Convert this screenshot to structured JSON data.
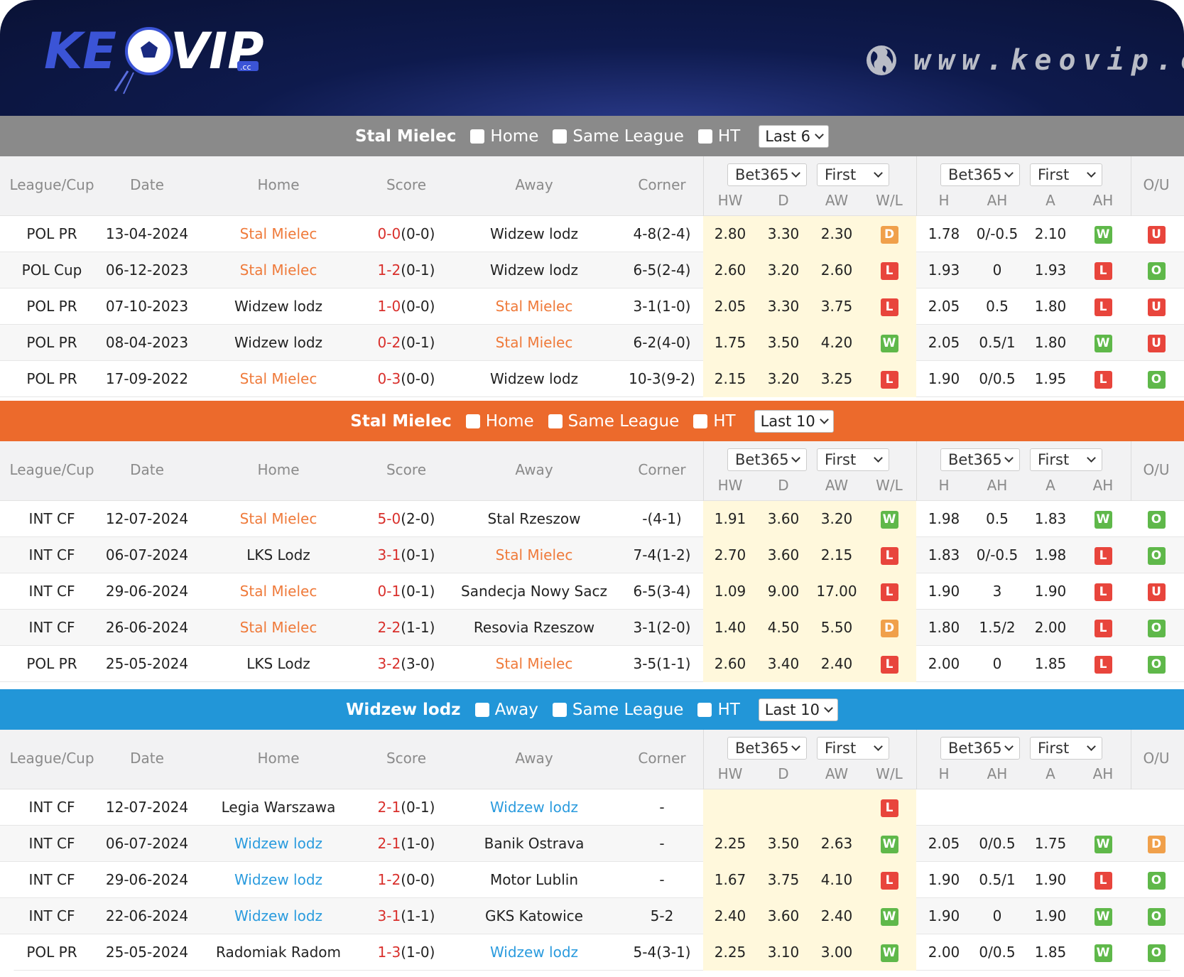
{
  "brand": {
    "logo_text": "KEOVIP",
    "logo_sub": ".cc",
    "website": "www.keovip.cc"
  },
  "colors": {
    "bar1": "#8a8a8a",
    "bar2": "#ec6a2c",
    "bar3": "#2296d8",
    "win": "#5fb84a",
    "loss": "#e8453c",
    "draw": "#f0a04b",
    "odds_bg": "#fff8dc"
  },
  "columns": {
    "league": "League/Cup",
    "date": "Date",
    "home": "Home",
    "score": "Score",
    "away": "Away",
    "corner": "Corner",
    "bookmaker": "Bet365",
    "period": "First",
    "hw": "HW",
    "d": "D",
    "aw": "AW",
    "wl": "W/L",
    "h": "H",
    "ah": "AH",
    "a": "A",
    "ah2": "AH",
    "ou": "O/U"
  },
  "sections": [
    {
      "team": "Stal Mielec",
      "filter1": "Home",
      "filter2": "Same League",
      "filter3": "HT",
      "last": "Last 6",
      "rows": [
        {
          "league": "POL PR",
          "date": "13-04-2024",
          "home": "Stal Mielec",
          "home_hl": true,
          "score": "0-0",
          "ht": "(0-0)",
          "away": "Widzew lodz",
          "away_hl": false,
          "corner": "4-8(2-4)",
          "hw": "2.80",
          "d": "3.30",
          "aw": "2.30",
          "wl": "D",
          "h": "1.78",
          "ah": "0/-0.5",
          "a": "2.10",
          "ah_r": "W",
          "ou": "U"
        },
        {
          "league": "POL Cup",
          "date": "06-12-2023",
          "home": "Stal Mielec",
          "home_hl": true,
          "score": "1-2",
          "ht": "(0-1)",
          "away": "Widzew lodz",
          "away_hl": false,
          "corner": "6-5(2-4)",
          "hw": "2.60",
          "d": "3.20",
          "aw": "2.60",
          "wl": "L",
          "h": "1.93",
          "ah": "0",
          "a": "1.93",
          "ah_r": "L",
          "ou": "O"
        },
        {
          "league": "POL PR",
          "date": "07-10-2023",
          "home": "Widzew lodz",
          "home_hl": false,
          "score": "1-0",
          "ht": "(0-0)",
          "away": "Stal Mielec",
          "away_hl": true,
          "corner": "3-1(1-0)",
          "hw": "2.05",
          "d": "3.30",
          "aw": "3.75",
          "wl": "L",
          "h": "2.05",
          "ah": "0.5",
          "a": "1.80",
          "ah_r": "L",
          "ou": "U"
        },
        {
          "league": "POL PR",
          "date": "08-04-2023",
          "home": "Widzew lodz",
          "home_hl": false,
          "score": "0-2",
          "ht": "(0-1)",
          "away": "Stal Mielec",
          "away_hl": true,
          "corner": "6-2(4-0)",
          "hw": "1.75",
          "d": "3.50",
          "aw": "4.20",
          "wl": "W",
          "h": "2.05",
          "ah": "0.5/1",
          "a": "1.80",
          "ah_r": "W",
          "ou": "U"
        },
        {
          "league": "POL PR",
          "date": "17-09-2022",
          "home": "Stal Mielec",
          "home_hl": true,
          "score": "0-3",
          "ht": "(0-0)",
          "away": "Widzew lodz",
          "away_hl": false,
          "corner": "10-3(9-2)",
          "hw": "2.15",
          "d": "3.20",
          "aw": "3.25",
          "wl": "L",
          "h": "1.90",
          "ah": "0/0.5",
          "a": "1.95",
          "ah_r": "L",
          "ou": "O"
        }
      ]
    },
    {
      "team": "Stal Mielec",
      "filter1": "Home",
      "filter2": "Same League",
      "filter3": "HT",
      "last": "Last 10",
      "rows": [
        {
          "league": "INT CF",
          "date": "12-07-2024",
          "home": "Stal Mielec",
          "home_hl": true,
          "score": "5-0",
          "ht": "(2-0)",
          "away": "Stal Rzeszow",
          "away_hl": false,
          "corner": "-(4-1)",
          "hw": "1.91",
          "d": "3.60",
          "aw": "3.20",
          "wl": "W",
          "h": "1.98",
          "ah": "0.5",
          "a": "1.83",
          "ah_r": "W",
          "ou": "O"
        },
        {
          "league": "INT CF",
          "date": "06-07-2024",
          "home": "LKS Lodz",
          "home_hl": false,
          "score": "3-1",
          "ht": "(0-1)",
          "away": "Stal Mielec",
          "away_hl": true,
          "corner": "7-4(1-2)",
          "hw": "2.70",
          "d": "3.60",
          "aw": "2.15",
          "wl": "L",
          "h": "1.83",
          "ah": "0/-0.5",
          "a": "1.98",
          "ah_r": "L",
          "ou": "O"
        },
        {
          "league": "INT CF",
          "date": "29-06-2024",
          "home": "Stal Mielec",
          "home_hl": true,
          "score": "0-1",
          "ht": "(0-1)",
          "away": "Sandecja Nowy Sacz",
          "away_hl": false,
          "corner": "6-5(3-4)",
          "hw": "1.09",
          "d": "9.00",
          "aw": "17.00",
          "wl": "L",
          "h": "1.90",
          "ah": "3",
          "a": "1.90",
          "ah_r": "L",
          "ou": "U"
        },
        {
          "league": "INT CF",
          "date": "26-06-2024",
          "home": "Stal Mielec",
          "home_hl": true,
          "score": "2-2",
          "ht": "(1-1)",
          "away": "Resovia Rzeszow",
          "away_hl": false,
          "corner": "3-1(2-0)",
          "hw": "1.40",
          "d": "4.50",
          "aw": "5.50",
          "wl": "D",
          "h": "1.80",
          "ah": "1.5/2",
          "a": "2.00",
          "ah_r": "L",
          "ou": "O"
        },
        {
          "league": "POL PR",
          "date": "25-05-2024",
          "home": "LKS Lodz",
          "home_hl": false,
          "score": "3-2",
          "ht": "(3-0)",
          "away": "Stal Mielec",
          "away_hl": true,
          "corner": "3-5(1-1)",
          "hw": "2.60",
          "d": "3.40",
          "aw": "2.40",
          "wl": "L",
          "h": "2.00",
          "ah": "0",
          "a": "1.85",
          "ah_r": "L",
          "ou": "O"
        }
      ]
    },
    {
      "team": "Widzew lodz",
      "filter1": "Away",
      "filter2": "Same League",
      "filter3": "HT",
      "last": "Last 10",
      "rows": [
        {
          "league": "INT CF",
          "date": "12-07-2024",
          "home": "Legia Warszawa",
          "home_hl": false,
          "score": "2-1",
          "ht": "(0-1)",
          "away": "Widzew lodz",
          "away_hl": true,
          "corner": "-",
          "hw": "",
          "d": "",
          "aw": "",
          "wl": "L",
          "h": "",
          "ah": "",
          "a": "",
          "ah_r": "",
          "ou": ""
        },
        {
          "league": "INT CF",
          "date": "06-07-2024",
          "home": "Widzew lodz",
          "home_hl": true,
          "score": "2-1",
          "ht": "(1-0)",
          "away": "Banik Ostrava",
          "away_hl": false,
          "corner": "-",
          "hw": "2.25",
          "d": "3.50",
          "aw": "2.63",
          "wl": "W",
          "h": "2.05",
          "ah": "0/0.5",
          "a": "1.75",
          "ah_r": "W",
          "ou": "D"
        },
        {
          "league": "INT CF",
          "date": "29-06-2024",
          "home": "Widzew lodz",
          "home_hl": true,
          "score": "1-2",
          "ht": "(0-0)",
          "away": "Motor Lublin",
          "away_hl": false,
          "corner": "-",
          "hw": "1.67",
          "d": "3.75",
          "aw": "4.10",
          "wl": "L",
          "h": "1.90",
          "ah": "0.5/1",
          "a": "1.90",
          "ah_r": "L",
          "ou": "O"
        },
        {
          "league": "INT CF",
          "date": "22-06-2024",
          "home": "Widzew lodz",
          "home_hl": true,
          "score": "3-1",
          "ht": "(1-1)",
          "away": "GKS Katowice",
          "away_hl": false,
          "corner": "5-2",
          "hw": "2.40",
          "d": "3.60",
          "aw": "2.40",
          "wl": "W",
          "h": "1.90",
          "ah": "0",
          "a": "1.90",
          "ah_r": "W",
          "ou": "O"
        },
        {
          "league": "POL PR",
          "date": "25-05-2024",
          "home": "Radomiak Radom",
          "home_hl": false,
          "score": "1-3",
          "ht": "(1-0)",
          "away": "Widzew lodz",
          "away_hl": true,
          "corner": "5-4(3-1)",
          "hw": "2.25",
          "d": "3.10",
          "aw": "3.00",
          "wl": "W",
          "h": "2.00",
          "ah": "0/0.5",
          "a": "1.85",
          "ah_r": "W",
          "ou": "O"
        }
      ]
    }
  ]
}
